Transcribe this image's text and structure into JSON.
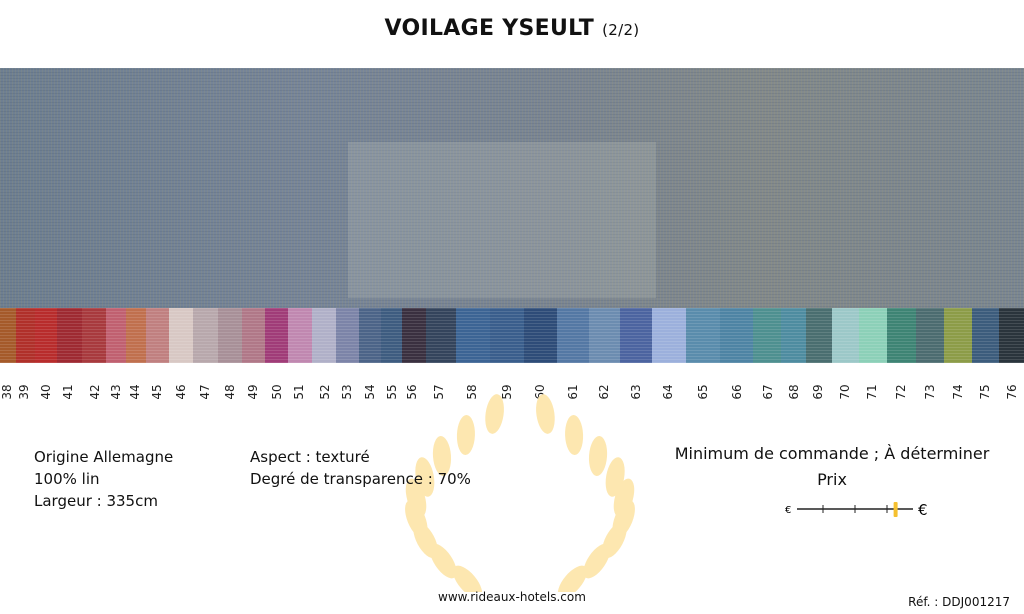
{
  "header": {
    "title": "VOILAGE YSEULT",
    "subtitle": "(2/2)"
  },
  "swatches": [
    {
      "label": "38",
      "color": "#a55a2a"
    },
    {
      "label": "39",
      "color": "#b0302a"
    },
    {
      "label": "40",
      "color": "#b82c2c"
    },
    {
      "label": "41",
      "color": "#9e2a32"
    },
    {
      "label": "42",
      "color": "#a83a3e"
    },
    {
      "label": "43",
      "color": "#c06070"
    },
    {
      "label": "44",
      "color": "#c0704e"
    },
    {
      "label": "45",
      "color": "#c08080"
    },
    {
      "label": "46",
      "color": "#d8c8c4"
    },
    {
      "label": "47",
      "color": "#b8a8ac"
    },
    {
      "label": "48",
      "color": "#a89098"
    },
    {
      "label": "49",
      "color": "#b07888"
    },
    {
      "label": "50",
      "color": "#a03c78"
    },
    {
      "label": "51",
      "color": "#c088b0"
    },
    {
      "label": "52",
      "color": "#b0b0c8"
    },
    {
      "label": "53",
      "color": "#7c84a8"
    },
    {
      "label": "54",
      "color": "#4c6488"
    },
    {
      "label": "55",
      "color": "#3e5c80"
    },
    {
      "label": "56",
      "color": "#3a3040"
    },
    {
      "label": "57",
      "color": "#34445c"
    },
    {
      "label": "58",
      "color": "#3c6494"
    },
    {
      "label": "59",
      "color": "#3a5e8c"
    },
    {
      "label": "60",
      "color": "#2e4c78"
    },
    {
      "label": "61",
      "color": "#5478a4"
    },
    {
      "label": "62",
      "color": "#6c8cb0"
    },
    {
      "label": "63",
      "color": "#4c64a0"
    },
    {
      "label": "64",
      "color": "#9cb0dc"
    },
    {
      "label": "65",
      "color": "#5a8cac"
    },
    {
      "label": "66",
      "color": "#4e84a4"
    },
    {
      "label": "67",
      "color": "#4e9090"
    },
    {
      "label": "68",
      "color": "#4e8ca0"
    },
    {
      "label": "69",
      "color": "#4a6e70"
    },
    {
      "label": "70",
      "color": "#9cc8c8"
    },
    {
      "label": "71",
      "color": "#8cd0b8"
    },
    {
      "label": "72",
      "color": "#3e8474"
    },
    {
      "label": "73",
      "color": "#4c6c70"
    },
    {
      "label": "74",
      "color": "#8c9c48"
    },
    {
      "label": "75",
      "color": "#3c5c7c"
    },
    {
      "label": "76",
      "color": "#2a343c"
    }
  ],
  "specs": {
    "origin": "Origine Allemagne",
    "composition": "100% lin",
    "width": "Largeur : 335cm",
    "aspect": "Aspect : texturé",
    "transparency": "Degré de transparence : 70%"
  },
  "order": {
    "minimum": "Minimum de commande ; À déterminer",
    "price_label": "Prix"
  },
  "price_scale": {
    "low_symbol": "€",
    "high_symbol": "€",
    "level_fraction": 0.85,
    "marker_color": "#f5c030"
  },
  "footer": {
    "url": "www.rideaux-hotels.com",
    "reference": "Réf. : DDJ001217"
  },
  "colors": {
    "wreath": "#fde7b0"
  }
}
